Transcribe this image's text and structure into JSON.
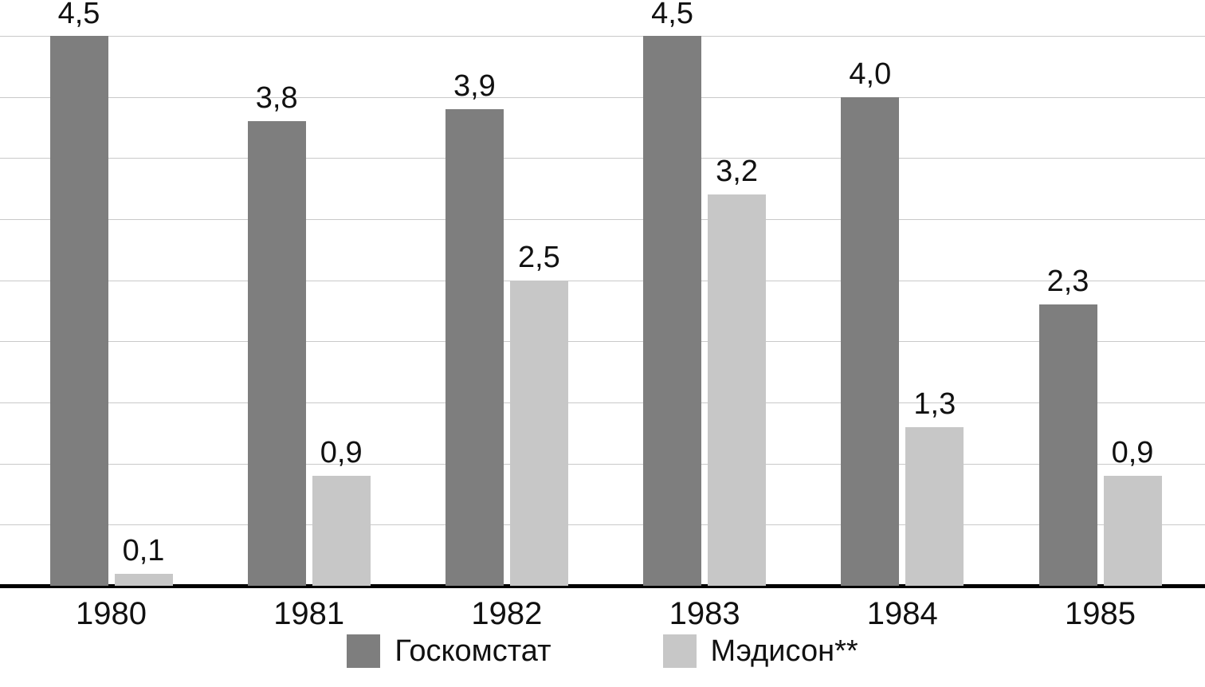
{
  "chart_data": {
    "type": "bar",
    "categories": [
      "1980",
      "1981",
      "1982",
      "1983",
      "1984",
      "1985"
    ],
    "series": [
      {
        "name": "Госкомстат",
        "color": "#7e7e7e",
        "values": [
          4.5,
          3.8,
          3.9,
          4.5,
          4.0,
          2.3
        ]
      },
      {
        "name": "Мэдисон**",
        "color": "#c7c7c7",
        "values": [
          0.1,
          0.9,
          2.5,
          3.2,
          1.3,
          0.9
        ]
      }
    ],
    "value_labels": [
      [
        "4,5",
        "3,8",
        "3,9",
        "4,5",
        "4,0",
        "2,3"
      ],
      [
        "0,1",
        "0,9",
        "2,5",
        "3,2",
        "1,3",
        "0,9"
      ]
    ],
    "title": "",
    "xlabel": "",
    "ylabel": "",
    "ylim": [
      0,
      4.5
    ],
    "grid": true,
    "grid_step": 0.5,
    "legend_position": "bottom",
    "decimal_separator": ","
  },
  "colors": {
    "gridline": "#c9c9c9",
    "axis": "#000000",
    "text": "#111111",
    "background": "#ffffff"
  },
  "legend": {
    "items": [
      {
        "label": "Госкомстат",
        "color": "#7e7e7e"
      },
      {
        "label": "Мэдисон**",
        "color": "#c7c7c7"
      }
    ]
  }
}
